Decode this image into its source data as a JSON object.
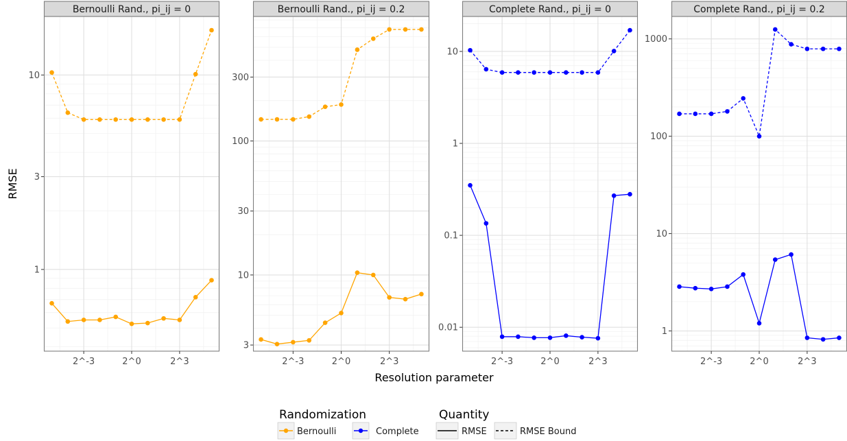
{
  "figure": {
    "xlabel": "Resolution parameter",
    "ylabel": "RMSE"
  },
  "legend": {
    "randomization": {
      "title": "Randomization",
      "entries": [
        {
          "label": "Bernoulli",
          "color": "#FFA500"
        },
        {
          "label": "Complete",
          "color": "#0000FF"
        }
      ]
    },
    "quantity": {
      "title": "Quantity",
      "entries": [
        {
          "label": "RMSE",
          "linetype": "solid"
        },
        {
          "label": "RMSE Bound",
          "linetype": "dashed"
        }
      ]
    }
  },
  "chart_data": [
    {
      "type": "line",
      "title": "Bernoulli Rand., pi_ij = 0",
      "color": "#FFA500",
      "x": [
        -5,
        -4,
        -3,
        -2,
        -1,
        0,
        1,
        2,
        3,
        4,
        5
      ],
      "x_ticks": [
        {
          "value": -3,
          "label": "2^-3"
        },
        {
          "value": 0,
          "label": "2^0"
        },
        {
          "value": 3,
          "label": "2^3"
        }
      ],
      "y_scale": "log10",
      "ylim": [
        0.38,
        20
      ],
      "y_ticks": [
        {
          "value": 1,
          "label": "1"
        },
        {
          "value": 3,
          "label": "3"
        },
        {
          "value": 10,
          "label": "10"
        }
      ],
      "series": [
        {
          "name": "RMSE",
          "linetype": "solid",
          "values": [
            0.67,
            0.54,
            0.55,
            0.55,
            0.57,
            0.525,
            0.53,
            0.56,
            0.55,
            0.72,
            0.88
          ]
        },
        {
          "name": "RMSE Bound",
          "linetype": "dashed",
          "values": [
            10.3,
            6.4,
            5.9,
            5.9,
            5.9,
            5.9,
            5.9,
            5.9,
            5.9,
            10.1,
            17.0
          ]
        }
      ]
    },
    {
      "type": "line",
      "title": "Bernoulli Rand., pi_ij = 0.2",
      "color": "#FFA500",
      "x": [
        -5,
        -4,
        -3,
        -2,
        -1,
        0,
        1,
        2,
        3,
        4,
        5
      ],
      "x_ticks": [
        {
          "value": -3,
          "label": "2^-3"
        },
        {
          "value": 0,
          "label": "2^0"
        },
        {
          "value": 3,
          "label": "2^3"
        }
      ],
      "y_scale": "log10",
      "ylim": [
        2.7,
        850
      ],
      "y_ticks": [
        {
          "value": 3,
          "label": "3"
        },
        {
          "value": 10,
          "label": "10"
        },
        {
          "value": 30,
          "label": "30"
        },
        {
          "value": 100,
          "label": "100"
        },
        {
          "value": 300,
          "label": "300"
        }
      ],
      "series": [
        {
          "name": "RMSE",
          "linetype": "solid",
          "values": [
            3.3,
            3.05,
            3.15,
            3.25,
            4.4,
            5.2,
            10.4,
            10.0,
            6.8,
            6.6,
            7.2
          ]
        },
        {
          "name": "RMSE Bound",
          "linetype": "dashed",
          "values": [
            145,
            145,
            145,
            152,
            180,
            187,
            480,
            580,
            680,
            680,
            680
          ]
        }
      ]
    },
    {
      "type": "line",
      "title": "Complete Rand., pi_ij = 0",
      "color": "#0000FF",
      "x": [
        -5,
        -4,
        -3,
        -2,
        -1,
        0,
        1,
        2,
        3,
        4,
        5
      ],
      "x_ticks": [
        {
          "value": -3,
          "label": "2^-3"
        },
        {
          "value": 0,
          "label": "2^0"
        },
        {
          "value": 3,
          "label": "2^3"
        }
      ],
      "y_scale": "log10",
      "ylim": [
        0.0055,
        24
      ],
      "y_ticks": [
        {
          "value": 0.01,
          "label": "0.01"
        },
        {
          "value": 0.1,
          "label": "0.1"
        },
        {
          "value": 1,
          "label": "1"
        },
        {
          "value": 10,
          "label": "10"
        }
      ],
      "series": [
        {
          "name": "RMSE",
          "linetype": "solid",
          "values": [
            0.35,
            0.135,
            0.0079,
            0.0079,
            0.0077,
            0.0077,
            0.0081,
            0.0078,
            0.0076,
            0.27,
            0.28
          ]
        },
        {
          "name": "RMSE Bound",
          "linetype": "dashed",
          "values": [
            10.3,
            6.4,
            5.9,
            5.9,
            5.9,
            5.9,
            5.9,
            5.9,
            5.9,
            10.1,
            17.0
          ]
        }
      ]
    },
    {
      "type": "line",
      "title": "Complete Rand., pi_ij = 0.2",
      "color": "#0000FF",
      "x": [
        -5,
        -4,
        -3,
        -2,
        -1,
        0,
        1,
        2,
        3,
        4,
        5
      ],
      "x_ticks": [
        {
          "value": -3,
          "label": "2^-3"
        },
        {
          "value": 0,
          "label": "2^0"
        },
        {
          "value": 3,
          "label": "2^3"
        }
      ],
      "y_scale": "log10",
      "ylim": [
        0.62,
        1700
      ],
      "y_ticks": [
        {
          "value": 1,
          "label": "1"
        },
        {
          "value": 10,
          "label": "10"
        },
        {
          "value": 100,
          "label": "100"
        },
        {
          "value": 1000,
          "label": "1000"
        }
      ],
      "series": [
        {
          "name": "RMSE",
          "linetype": "solid",
          "values": [
            2.85,
            2.75,
            2.7,
            2.85,
            3.8,
            1.2,
            5.4,
            6.1,
            0.85,
            0.82,
            0.85
          ]
        },
        {
          "name": "RMSE Bound",
          "linetype": "dashed",
          "values": [
            170,
            170,
            170,
            180,
            245,
            100,
            1250,
            880,
            790,
            790,
            790
          ]
        }
      ]
    }
  ]
}
